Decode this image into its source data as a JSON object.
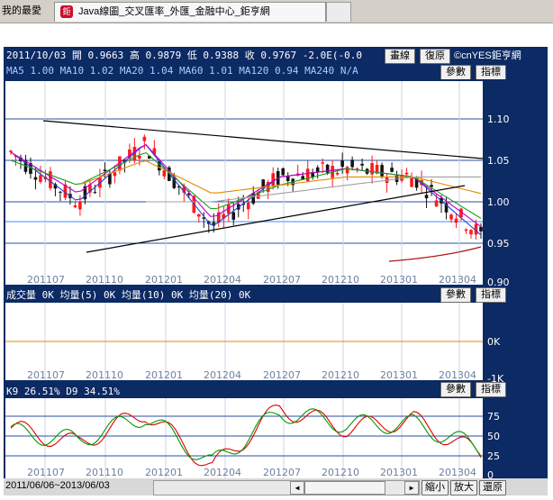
{
  "browser": {
    "prev_tab_label": "我的最愛",
    "active_tab_favicon": "鉅",
    "active_tab_title": "Java線圖_交叉匯率_外匯_金融中心_鉅亨網"
  },
  "price_panel": {
    "ohlc_line": "2011/10/03 開 0.9663 高 0.9879 低 0.9388 收 0.9767 -2.0E(-0.0",
    "ma_line": "MA5 1.00  MA10 1.02  MA20 1.04  MA60 1.01  MA120 0.94  MA240 N/A",
    "btn_drawline": "畫線",
    "btn_restore": "復原",
    "copyright": "©cnYES鉅亨網",
    "btn_params": "參數",
    "btn_indicator": "指標",
    "y_ticks": [
      "1.10",
      "1.05",
      "1.00",
      "0.95",
      "0.90"
    ],
    "x_ticks": [
      "201107",
      "201110",
      "201201",
      "201204",
      "201207",
      "201210",
      "201301",
      "201304"
    ]
  },
  "volume_panel": {
    "info_line": "成交量 0K  均量(5) 0K  均量(10) 0K  均量(20) 0K",
    "btn_params": "參數",
    "btn_indicator": "指標",
    "y_ticks": [
      "0K",
      "-1K"
    ],
    "x_ticks": [
      "201107",
      "201110",
      "201201",
      "201204",
      "201207",
      "201210",
      "201301",
      "201304"
    ]
  },
  "kd_panel": {
    "info_line": "K9 26.51%  D9 34.51%",
    "btn_params": "參數",
    "btn_indicator": "指標",
    "y_ticks": [
      "75",
      "50",
      "25",
      "0"
    ],
    "x_ticks": [
      "201107",
      "201110",
      "201201",
      "201204",
      "201207",
      "201210",
      "201301",
      "201304"
    ]
  },
  "footer": {
    "date_range": "2011/06/06~2013/06/03",
    "btn_zoom_out": "縮小",
    "btn_zoom_in": "放大",
    "btn_reset": "還原"
  },
  "colors": {
    "panel_bg": "#0c2a63",
    "up_candle": "#ff1a1a",
    "down_candle": "#141414",
    "ma5": "#2a3fd6",
    "ma10": "#c000c0",
    "ma20": "#1e9e1e",
    "ma60": "#e48a00",
    "ma120": "#a0a0a0",
    "k_line": "#e00000",
    "d_line": "#009900"
  },
  "chart_data": {
    "type": "candlestick",
    "title": "",
    "ylim": [
      0.9,
      1.12
    ],
    "ylabel": "",
    "xlabel": "",
    "categories": [
      "201107",
      "201110",
      "201201",
      "201204",
      "201207",
      "201210",
      "201301",
      "201304"
    ],
    "series": [
      {
        "name": "MA5",
        "values": [
          1.06,
          1.0,
          1.07,
          0.97,
          1.03,
          1.04,
          1.03,
          0.96
        ]
      },
      {
        "name": "MA10",
        "values": [
          1.06,
          1.01,
          1.07,
          0.98,
          1.03,
          1.04,
          1.03,
          0.97
        ]
      },
      {
        "name": "MA20",
        "values": [
          1.05,
          1.02,
          1.06,
          0.99,
          1.02,
          1.04,
          1.03,
          0.98
        ]
      },
      {
        "name": "MA60",
        "values": [
          null,
          1.02,
          1.05,
          1.01,
          1.02,
          1.03,
          1.03,
          1.01
        ]
      },
      {
        "name": "MA120",
        "values": [
          null,
          null,
          1.0,
          1.0,
          1.01,
          1.02,
          1.03,
          1.03
        ]
      }
    ],
    "kd": {
      "categories": [
        "201107",
        "201110",
        "201201",
        "201204",
        "201207",
        "201210",
        "201301",
        "201304"
      ],
      "K": [
        60,
        40,
        80,
        10,
        85,
        60,
        70,
        26.51
      ],
      "D": [
        55,
        45,
        75,
        15,
        80,
        65,
        65,
        34.51
      ]
    }
  }
}
